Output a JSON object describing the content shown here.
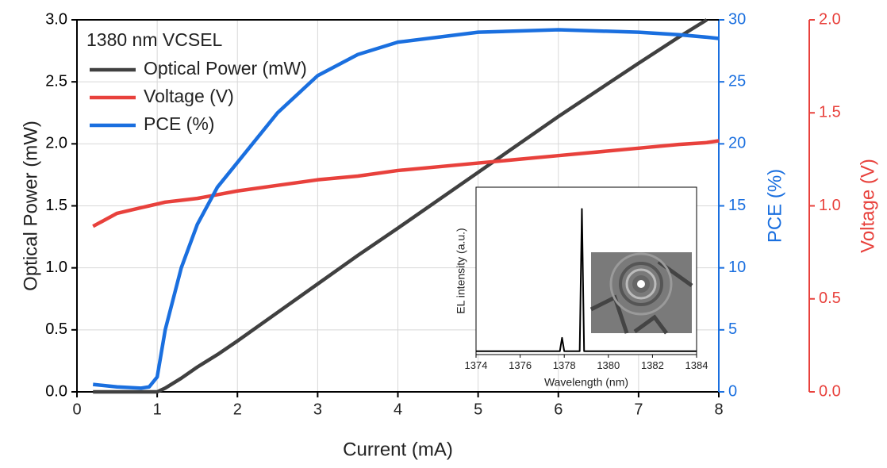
{
  "chart_data": [
    {
      "type": "line",
      "legend_title": "1380 nm VCSEL",
      "legend": "top-left",
      "grid": true,
      "xlabel": "Current (mA)",
      "ylabel": "Optical Power (mW)",
      "y2label": "PCE (%)",
      "y3label": "Voltage (V)",
      "y2color": "#1a6fdf",
      "y3color": "#e8413c",
      "x": [
        0.2,
        0.5,
        0.8,
        0.9,
        1.0,
        1.1,
        1.3,
        1.5,
        1.75,
        2,
        2.5,
        3,
        3.5,
        4,
        5,
        6,
        7,
        7.5,
        7.85,
        8
      ],
      "xlim": [
        0,
        8
      ],
      "xticks": [
        0,
        1,
        2,
        3,
        4,
        5,
        6,
        7,
        8
      ],
      "ylim": [
        0,
        3
      ],
      "yticks": [
        {
          "value": 0,
          "label": "0.0"
        },
        {
          "value": 0.5,
          "label": "0.5"
        },
        {
          "value": 1,
          "label": "1.0"
        },
        {
          "value": 1.5,
          "label": "1.5"
        },
        {
          "value": 2,
          "label": "2.0"
        },
        {
          "value": 2.5,
          "label": "2.5"
        },
        {
          "value": 3,
          "label": "3.0"
        }
      ],
      "y2lim": [
        0,
        30
      ],
      "y2ticks": [
        0,
        5,
        10,
        15,
        20,
        25,
        30
      ],
      "y3lim": [
        0,
        2
      ],
      "y3ticks": [
        {
          "value": 0,
          "label": "0.0"
        },
        {
          "value": 0.5,
          "label": "0.5"
        },
        {
          "value": 1,
          "label": "1.0"
        },
        {
          "value": 1.5,
          "label": "1.5"
        },
        {
          "value": 2,
          "label": "2.0"
        }
      ],
      "series": [
        {
          "name": "Optical Power (mW)",
          "color": "#404040",
          "axis": "y",
          "values": [
            0,
            0,
            0,
            0,
            0,
            0.03,
            0.11,
            0.2,
            0.3,
            0.41,
            0.64,
            0.87,
            1.1,
            1.32,
            1.77,
            2.22,
            2.65,
            2.86,
            3.0,
            null
          ]
        },
        {
          "name": "Voltage (V)",
          "color": "#e8413c",
          "axis": "y3",
          "values": [
            0.89,
            0.96,
            0.99,
            1.0,
            1.01,
            1.02,
            1.03,
            1.04,
            1.06,
            1.08,
            1.11,
            1.14,
            1.16,
            1.19,
            1.23,
            1.27,
            1.31,
            1.33,
            1.34,
            1.35
          ]
        },
        {
          "name": "PCE (%)",
          "color": "#1a6fdf",
          "axis": "y2",
          "values": [
            0.6,
            0.4,
            0.3,
            0.4,
            1.2,
            5,
            10,
            13.5,
            16.5,
            18.5,
            22.5,
            25.5,
            27.2,
            28.2,
            29,
            29.2,
            29,
            28.8,
            28.6,
            28.5
          ]
        }
      ]
    },
    {
      "type": "line",
      "xlabel": "Wavelength (nm)",
      "ylabel": "EL intensity (a.u.)",
      "grid": true,
      "x": [
        1374,
        1377.8,
        1377.9,
        1378,
        1378.7,
        1378.8,
        1378.9,
        1384
      ],
      "xlim": [
        1374,
        1384
      ],
      "xticks": [
        1374,
        1376,
        1378,
        1380,
        1382,
        1384
      ],
      "ylim": [
        0,
        1
      ],
      "series": [
        {
          "color": "#000000",
          "values": [
            0.02,
            0.02,
            0.1,
            0.02,
            0.02,
            0.87,
            0.02,
            0.02
          ]
        }
      ]
    }
  ]
}
